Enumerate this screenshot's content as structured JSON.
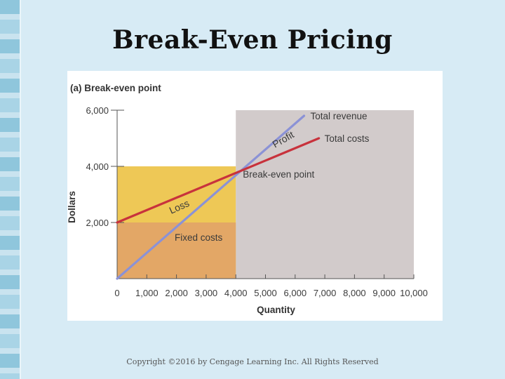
{
  "slide": {
    "title": "Break-Even Pricing",
    "copyright": "Copyright ©2016 by Cengage Learning Inc. All Rights Reserved"
  },
  "colors": {
    "background": "#d7ebf5",
    "profit_region": "#d2cbcb",
    "loss_region": "#eec856",
    "fixed_costs_region": "#e3a766",
    "total_revenue_line": "#8b92d6",
    "total_costs_line": "#c8323c"
  },
  "chart_data": {
    "type": "line",
    "title": "(a) Break-even point",
    "xlabel": "Quantity",
    "ylabel": "Dollars",
    "xlim": [
      0,
      10000
    ],
    "ylim": [
      0,
      6000
    ],
    "x_ticks": [
      "0",
      "1,000",
      "2,000",
      "3,000",
      "4,000",
      "5,000",
      "6,000",
      "7,000",
      "8,000",
      "9,000",
      "10,000"
    ],
    "y_ticks": [
      "2,000",
      "4,000",
      "6,000"
    ],
    "series": [
      {
        "name": "Total revenue",
        "x": [
          0,
          6300
        ],
        "y": [
          0,
          5800
        ]
      },
      {
        "name": "Total costs",
        "x": [
          0,
          6800
        ],
        "y": [
          2000,
          5000
        ]
      }
    ],
    "fixed_costs": 2000,
    "break_even": {
      "x": 4000,
      "y": 4000
    },
    "annotations": {
      "profit": "Profit",
      "loss": "Loss",
      "fixed_costs": "Fixed costs",
      "break_even": "Break-even point"
    }
  }
}
